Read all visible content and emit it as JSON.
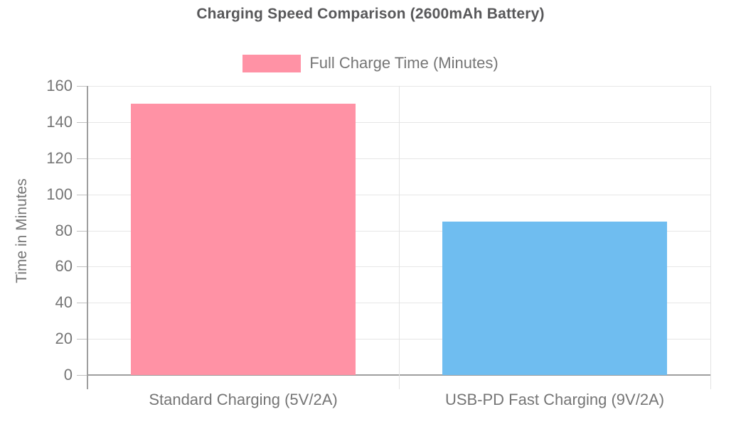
{
  "chart_data": {
    "type": "bar",
    "title": "Charging Speed Comparison (2600mAh Battery)",
    "categories": [
      "Standard Charging (5V/2A)",
      "USB-PD Fast Charging (9V/2A)"
    ],
    "series": [
      {
        "name": "Full Charge Time (Minutes)",
        "values": [
          150,
          85
        ],
        "colors": [
          "#ff92a5",
          "#6fbdf0"
        ]
      }
    ],
    "xlabel": "",
    "ylabel": "Time in Minutes",
    "ylim": [
      0,
      160
    ],
    "ytick_step": 20,
    "ytick_labels": [
      "0",
      "20",
      "40",
      "60",
      "80",
      "100",
      "120",
      "140",
      "160"
    ],
    "grid": true,
    "legend_position": "top"
  },
  "colors": {
    "background": "#ffffff",
    "title_text": "#58585a",
    "label_text": "#757575",
    "gridline": "#e6e6e6",
    "axis_line": "#9e9e9e",
    "tick_mark": "#c0c0c0",
    "bar_pink": "#ff92a5",
    "bar_blue": "#6fbdf0"
  }
}
